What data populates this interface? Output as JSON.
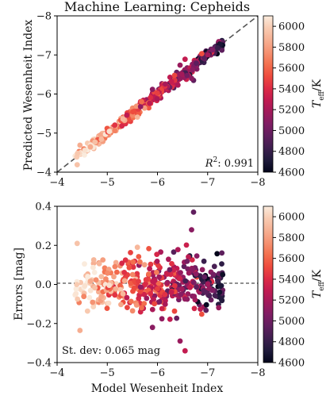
{
  "chart_data": [
    {
      "type": "scatter",
      "title": "Machine Learning: Cepheids",
      "xlabel": "",
      "ylabel": "Predicted Wesenheit Index",
      "xlim": [
        -4,
        -8
      ],
      "ylim": [
        -4,
        -8
      ],
      "xticks": [
        -4,
        -5,
        -6,
        -7,
        -8
      ],
      "yticks": [
        -4,
        -5,
        -6,
        -7,
        -8
      ],
      "x_ticklabels": [
        "−4",
        "−5",
        "−6",
        "−7",
        "−8"
      ],
      "y_ticklabels": [
        "−4",
        "−5",
        "−6",
        "−7",
        "−8"
      ],
      "reference_line": "one-to-one dashed diagonal",
      "annotation": "R²: 0.991",
      "colorbar": {
        "label": "T_eff/K",
        "range": [
          4600,
          6100
        ],
        "ticks": [
          4600,
          4800,
          5000,
          5200,
          5400,
          5600,
          5800,
          6000
        ],
        "colormap": "rocket"
      },
      "points_summary": "≈400 Cepheids along the one-to-one line from −4.3 to −7.3; hotter stars at faint end, cooler at bright end"
    },
    {
      "type": "scatter",
      "title": "",
      "xlabel": "Model Wesenheit Index",
      "ylabel": "Errors [mag]",
      "xlim": [
        -4,
        -8
      ],
      "ylim": [
        -0.4,
        0.4
      ],
      "xticks": [
        -4,
        -5,
        -6,
        -7,
        -8
      ],
      "yticks": [
        -0.4,
        -0.2,
        0.0,
        0.2,
        0.4
      ],
      "x_ticklabels": [
        "−4",
        "−5",
        "−6",
        "−7",
        "−8"
      ],
      "y_ticklabels": [
        "−0.4",
        "−0.2",
        "0.0",
        "0.2",
        "0.4"
      ],
      "reference_line": "dashed horizontal at 0",
      "annotation": "St. dev: 0.065 mag",
      "colorbar": {
        "label": "T_eff/K",
        "range": [
          4600,
          6100
        ],
        "ticks": [
          4600,
          4800,
          5000,
          5200,
          5400,
          5600,
          5800,
          6000
        ],
        "colormap": "rocket"
      },
      "points_summary": "residuals centered on 0 with standard deviation 0.065 mag; outliers up to +0.37 and −0.34 near x ≈ −6.7"
    }
  ],
  "colors": {
    "rocket": [
      "#03051a",
      "#1f1a3b",
      "#3e1f4f",
      "#5f1f5e",
      "#7f1d64",
      "#a11a5b",
      "#c11b51",
      "#dd2c45",
      "#ee4c3e",
      "#f3714f",
      "#f59272",
      "#f6b093",
      "#f8cbb2",
      "#faebdd"
    ]
  }
}
